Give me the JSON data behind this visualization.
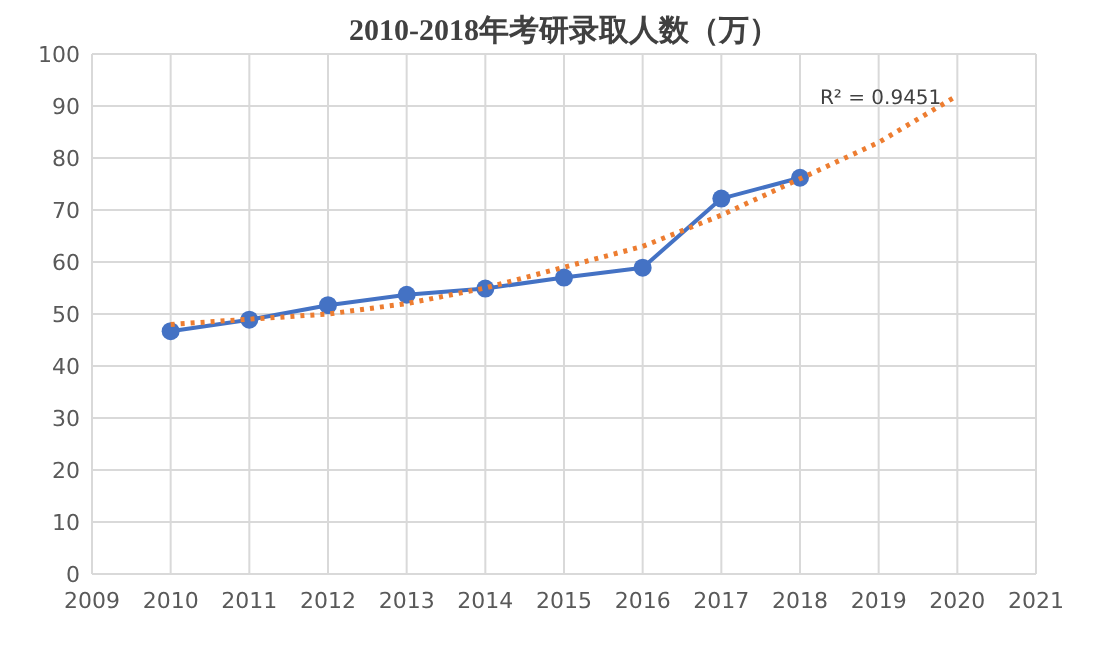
{
  "chart_data": {
    "type": "line",
    "title": "2010-2018年考研录取人数（万）",
    "series": [
      {
        "color": "#4472c4",
        "marker": "circle",
        "line_style": "solid",
        "x": [
          2010,
          2011,
          2012,
          2013,
          2014,
          2015,
          2016,
          2017,
          2018
        ],
        "values": [
          46.7,
          48.9,
          51.7,
          53.7,
          54.9,
          57,
          58.9,
          72.2,
          76.2
        ]
      },
      {
        "color": "#ed7d31",
        "marker": "none",
        "line_style": "dotted",
        "x": [
          2010,
          2011,
          2012,
          2013,
          2014,
          2015,
          2016,
          2017,
          2018,
          2019,
          2020
        ],
        "values": [
          48,
          49,
          50,
          52,
          55,
          59,
          63,
          69,
          76,
          83,
          92
        ]
      }
    ],
    "xlim": [
      2009,
      2021
    ],
    "xticks": [
      2009,
      2010,
      2011,
      2012,
      2013,
      2014,
      2015,
      2016,
      2017,
      2018,
      2019,
      2020,
      2021
    ],
    "ylim": [
      0,
      100
    ],
    "yticks": [
      0,
      10,
      20,
      30,
      40,
      50,
      60,
      70,
      80,
      90,
      100
    ],
    "grid": true,
    "annotations": [
      {
        "text": "R² = 0.9451",
        "x": 2020,
        "y": 92
      }
    ]
  }
}
